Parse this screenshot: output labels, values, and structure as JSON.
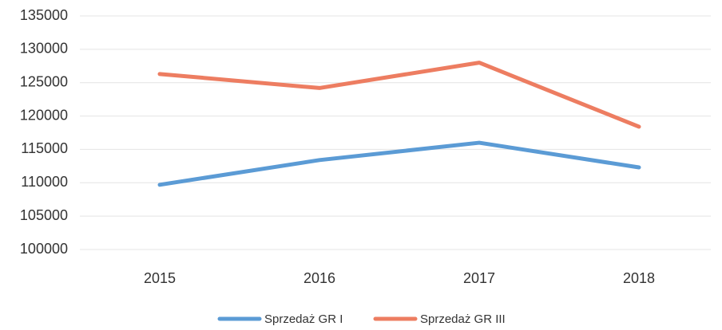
{
  "chart_data": {
    "type": "line",
    "categories": [
      "2015",
      "2016",
      "2017",
      "2018"
    ],
    "series": [
      {
        "name": "Sprzedaż GR I",
        "color": "#5b9bd5",
        "values": [
          109700,
          113400,
          116000,
          112300
        ]
      },
      {
        "name": "Sprzedaż GR III",
        "color": "#ed7d61",
        "values": [
          126300,
          124200,
          128000,
          118400
        ]
      }
    ],
    "ylim": [
      100000,
      135000
    ],
    "yticks": [
      100000,
      105000,
      110000,
      115000,
      120000,
      125000,
      130000,
      135000
    ],
    "grid": true,
    "legend": "bottom"
  }
}
